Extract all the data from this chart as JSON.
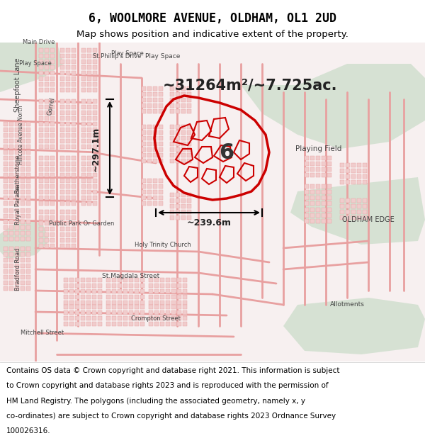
{
  "title_line1": "6, WOOLMORE AVENUE, OLDHAM, OL1 2UD",
  "title_line2": "Map shows position and indicative extent of the property.",
  "area_text": "~31264m²/~7.725ac.",
  "dim_vertical": "~297.1m",
  "dim_horizontal": "~239.6m",
  "label_number": "6",
  "footer_lines": [
    "Contains OS data © Crown copyright and database right 2021. This information is subject",
    "to Crown copyright and database rights 2023 and is reproduced with the permission of",
    "HM Land Registry. The polygons (including the associated geometry, namely x, y",
    "co-ordinates) are subject to Crown copyright and database rights 2023 Ordnance Survey",
    "100026316."
  ],
  "map_bg": "#f5f5f5",
  "map_border": "#cccccc",
  "title_bg": "#ffffff",
  "footer_bg": "#ffffff",
  "road_color": "#e8a0a0",
  "highlight_color": "#cc0000",
  "green_color": "#c8dcc8",
  "building_fill": "#f0d0d0",
  "fig_width": 6.0,
  "fig_height": 6.25,
  "dpi": 100
}
